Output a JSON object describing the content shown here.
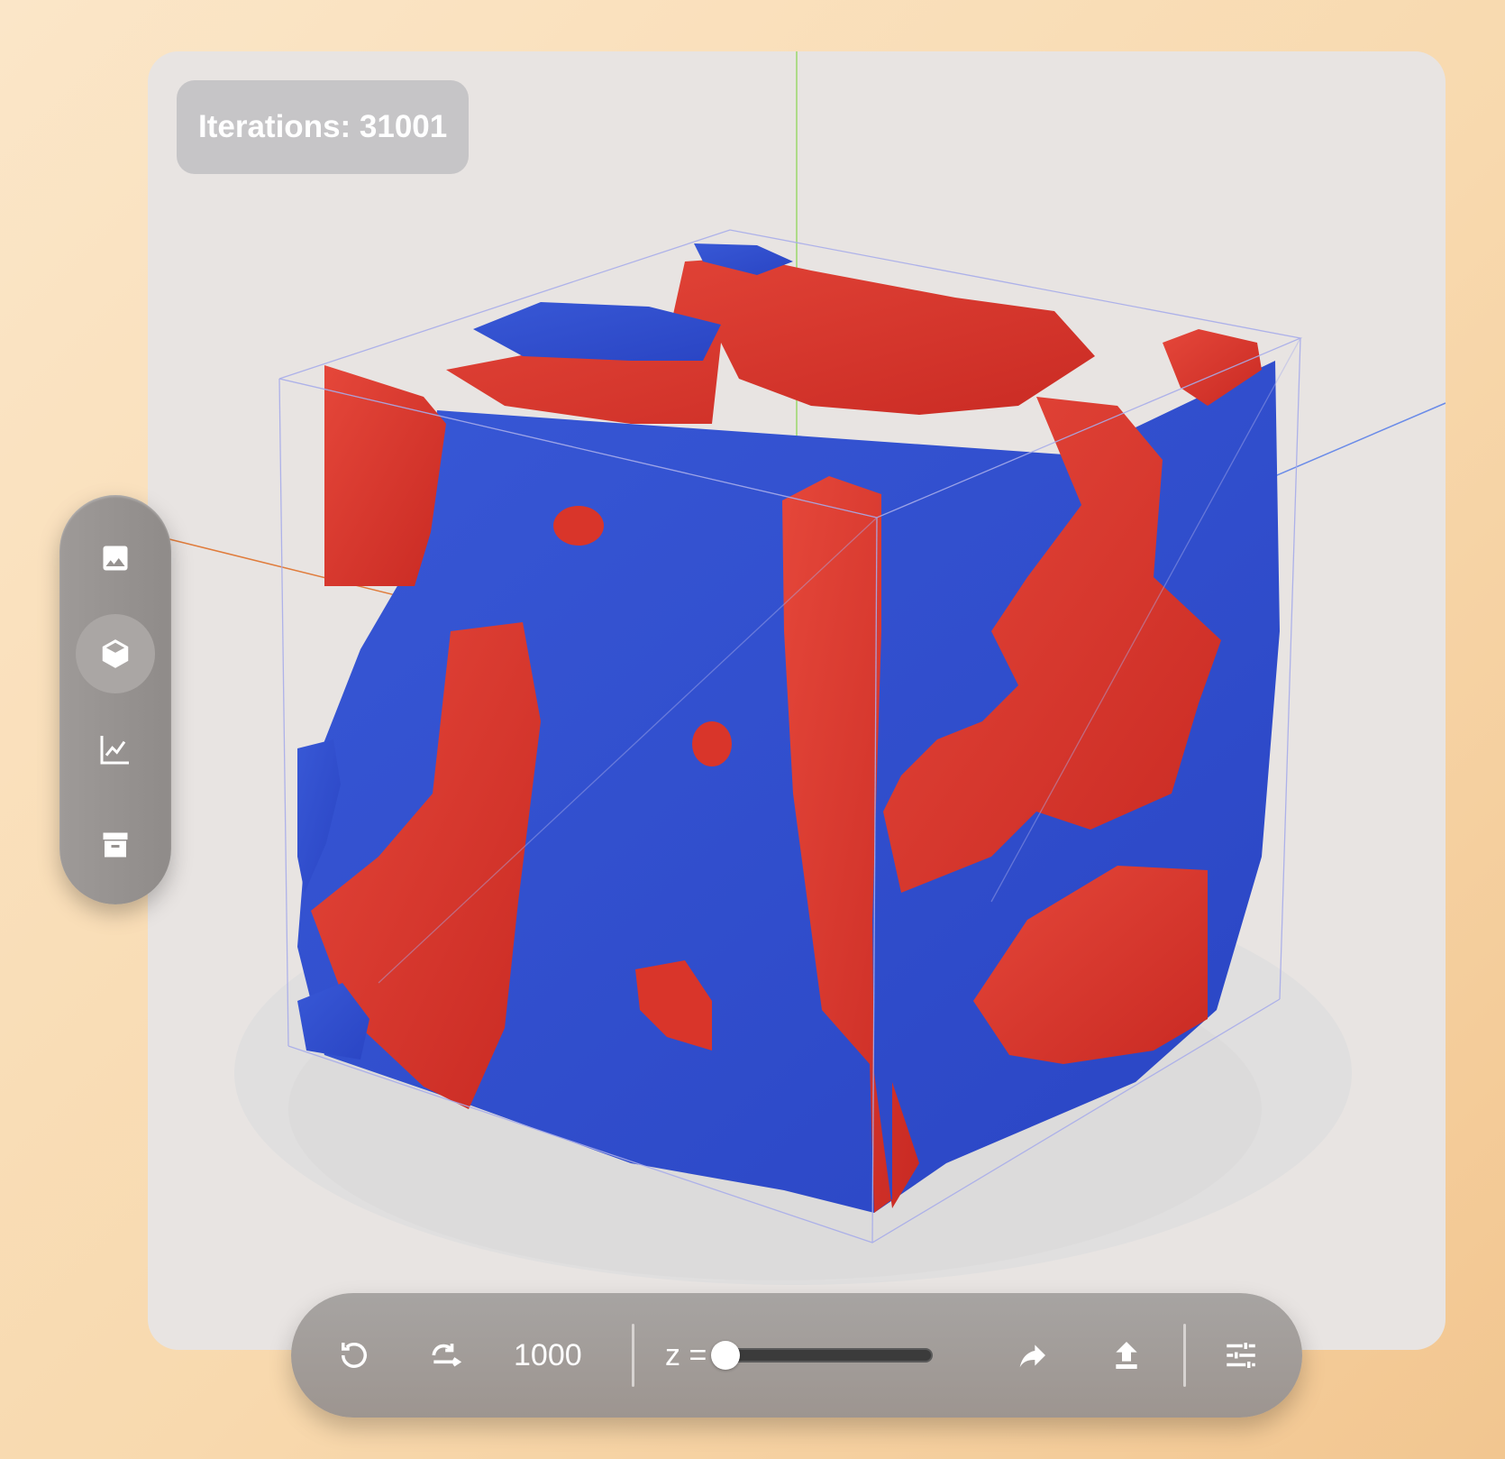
{
  "viewer": {
    "iterations_label": "Iterations: 31001",
    "colors": {
      "phase_a": "#d9352a",
      "phase_b": "#2f4ccf",
      "background": "#e8e4e2"
    }
  },
  "side_toolbar": {
    "items": [
      {
        "icon": "image-icon"
      },
      {
        "icon": "cube-icon",
        "active": true
      },
      {
        "icon": "line-chart-icon"
      },
      {
        "icon": "archive-icon"
      }
    ]
  },
  "bottom_toolbar": {
    "reset_icon": "reset-rotate-icon",
    "step_icon": "rotate-step-icon",
    "step_value": "1000",
    "slider_label": "z =",
    "slider_value": 0,
    "share_icon": "share-icon",
    "upload_icon": "upload-icon",
    "settings_icon": "sliders-settings-icon"
  }
}
